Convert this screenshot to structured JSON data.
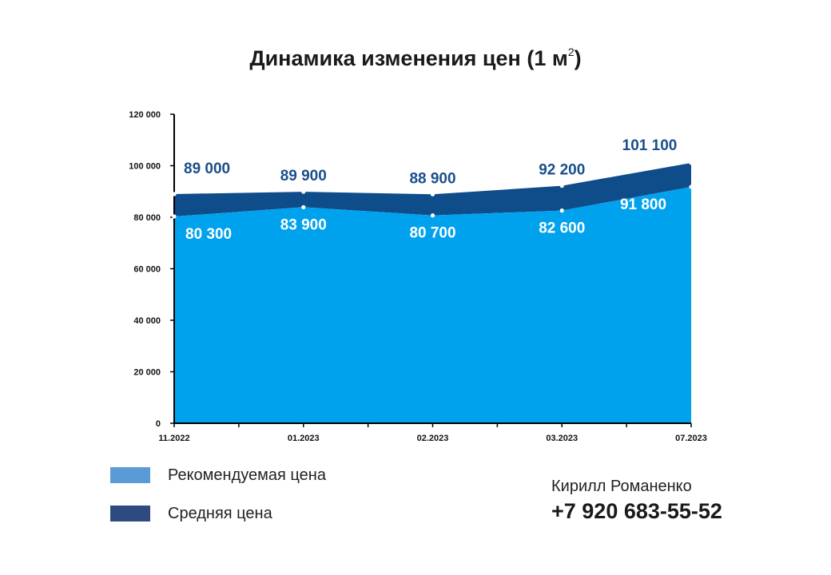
{
  "title": {
    "text": "Динамика изменения цен (1 м",
    "superscript": "2",
    "close": ")"
  },
  "chart_data": {
    "type": "area",
    "title": "Динамика изменения цен (1 м²)",
    "categories": [
      "11.2022",
      "01.2023",
      "02.2023",
      "03.2023",
      "07.2023"
    ],
    "ylim": [
      0,
      120000
    ],
    "yticks": [
      {
        "value": 0,
        "label": "0"
      },
      {
        "value": 20000,
        "label": "20 000"
      },
      {
        "value": 40000,
        "label": "40 000"
      },
      {
        "value": 60000,
        "label": "60 000"
      },
      {
        "value": 80000,
        "label": "80 000"
      },
      {
        "value": 100000,
        "label": "100 000"
      },
      {
        "value": 120000,
        "label": "120 000"
      }
    ],
    "grid": false,
    "legend_position": "bottom-left",
    "series": [
      {
        "name": "Рекомендуемая цена",
        "values": [
          80300,
          83900,
          80700,
          82600,
          91800
        ],
        "labels": [
          "80 300",
          "83 900",
          "80 700",
          "82 600",
          "91 800"
        ],
        "fill_color": "#00a2ee",
        "legend_color": "#5b9bd5",
        "label_color": "#ffffff"
      },
      {
        "name": "Средняя цена",
        "values": [
          89000,
          89900,
          88900,
          92200,
          101100
        ],
        "labels": [
          "89 000",
          "89 900",
          "88 900",
          "92 200",
          "101 100"
        ],
        "fill_color": "#0f4c8a",
        "legend_color": "#2e4a7f",
        "label_color": "#1a4f8b"
      }
    ]
  },
  "legend": [
    {
      "label": "Рекомендуемая цена",
      "color": "#5b9bd5"
    },
    {
      "label": "Средняя цена",
      "color": "#2e4a7f"
    }
  ],
  "contact": {
    "name": "Кирилл Романенко",
    "phone": "+7 920 683-55-52"
  }
}
